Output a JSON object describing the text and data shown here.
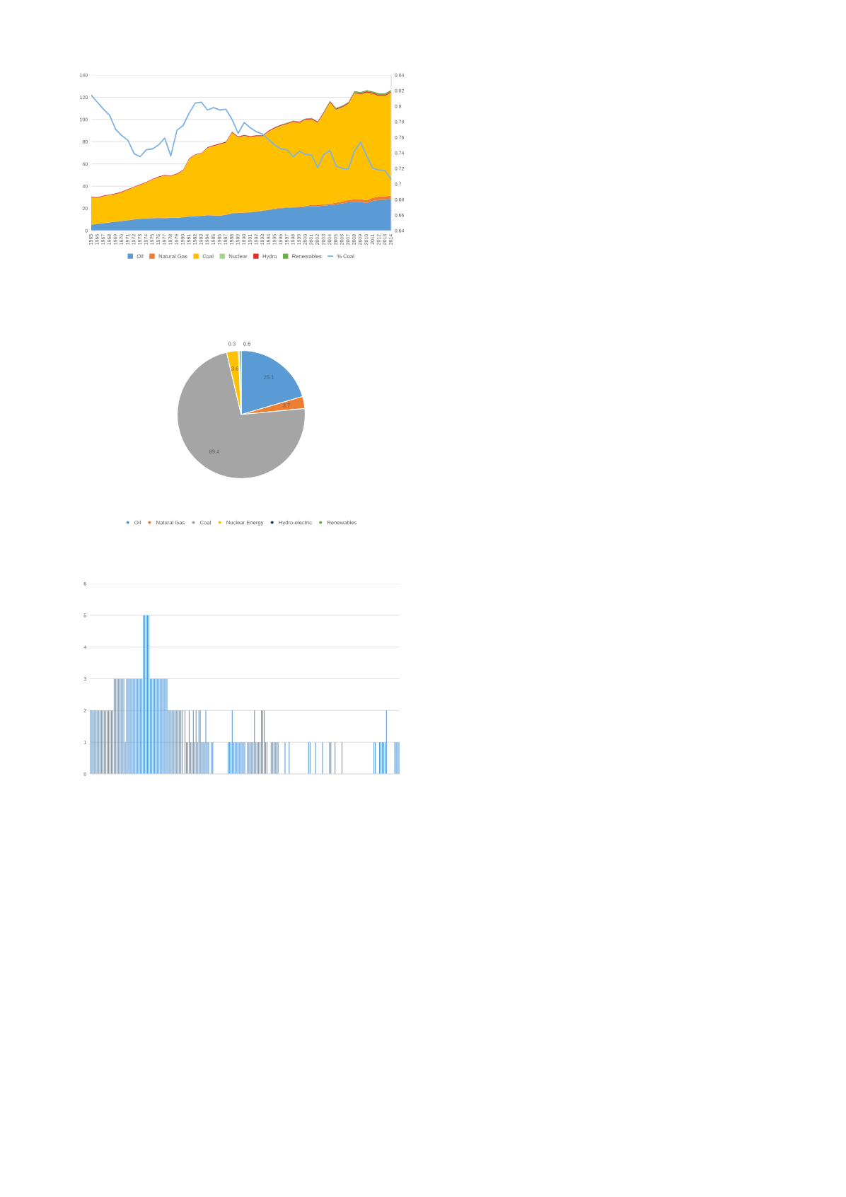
{
  "chart_data": [
    {
      "type": "area",
      "stacked": true,
      "grid": "y",
      "legend": "bottom",
      "categories": [
        "1965",
        "1966",
        "1967",
        "1968",
        "1969",
        "1970",
        "1971",
        "1972",
        "1973",
        "1974",
        "1975",
        "1976",
        "1977",
        "1978",
        "1979",
        "1980",
        "1981",
        "1982",
        "1983",
        "1984",
        "1985",
        "1986",
        "1987",
        "1988",
        "1989",
        "1990",
        "1991",
        "1992",
        "1993",
        "1994",
        "1995",
        "1996",
        "1997",
        "1998",
        "1999",
        "2000",
        "2001",
        "2002",
        "2003",
        "2004",
        "2005",
        "2006",
        "2007",
        "2008",
        "2009",
        "2010",
        "2011",
        "2012",
        "2013",
        "2014"
      ],
      "ylim": [
        0,
        140
      ],
      "yticks": [
        0,
        20,
        40,
        60,
        80,
        100,
        120,
        140
      ],
      "y2lim": [
        0.64,
        0.84
      ],
      "y2ticks": [
        0.64,
        0.66,
        0.68,
        0.7,
        0.72,
        0.74,
        0.76,
        0.78,
        0.8,
        0.82,
        0.84
      ],
      "series": [
        {
          "name": "Oil",
          "color": "#5b9bd5",
          "values": [
            5.3,
            6.0,
            6.6,
            7.3,
            8.0,
            8.6,
            9.3,
            10.0,
            10.6,
            11.0,
            11.1,
            11.3,
            11.2,
            11.5,
            11.4,
            12.0,
            12.5,
            13.0,
            13.2,
            13.8,
            13.5,
            13.3,
            14.2,
            15.6,
            15.9,
            16.1,
            16.4,
            17.0,
            17.8,
            18.6,
            19.4,
            20.0,
            20.5,
            20.8,
            21.0,
            21.4,
            21.8,
            22.0,
            22.5,
            23.0,
            23.5,
            24.5,
            25.5,
            26.0,
            25.8,
            24.8,
            26.8,
            27.6,
            27.8,
            28.2
          ]
        },
        {
          "name": "Natural Gas",
          "color": "#ed7d31",
          "values": [
            0.2,
            0.2,
            0.2,
            0.2,
            0.2,
            0.2,
            0.2,
            0.2,
            0.2,
            0.2,
            0.2,
            0.2,
            0.2,
            0.2,
            0.2,
            0.2,
            0.2,
            0.2,
            0.2,
            0.2,
            0.3,
            0.3,
            0.3,
            0.3,
            0.3,
            0.3,
            0.3,
            0.3,
            0.3,
            0.3,
            0.5,
            0.5,
            0.5,
            0.5,
            0.5,
            0.8,
            1.2,
            1.2,
            1.2,
            1.2,
            1.6,
            1.8,
            2.0,
            2.2,
            2.4,
            2.6,
            2.8,
            3.0,
            3.1,
            3.3
          ]
        },
        {
          "name": "Coal",
          "color": "#ffc000",
          "values": [
            24.3,
            23.2,
            24.1,
            24.4,
            24.8,
            25.7,
            27.3,
            28.7,
            30.3,
            32.0,
            34.6,
            36.6,
            38.1,
            37.4,
            39.2,
            41.8,
            51.6,
            54.9,
            55.8,
            60.4,
            62.1,
            63.9,
            64.5,
            72.1,
            67.6,
            68.7,
            67.3,
            67.6,
            66.8,
            70.2,
            72.1,
            73.7,
            74.9,
            76.5,
            75.5,
            77.4,
            76.9,
            73.7,
            81.8,
            90.9,
            83.6,
            84.5,
            86.5,
            95.3,
            94.3,
            96.8,
            93.5,
            90.4,
            90.1,
            92.7
          ]
        },
        {
          "name": "Nuclear",
          "color": "#a9d18e",
          "values": [
            0,
            0,
            0,
            0,
            0,
            0,
            0,
            0,
            0,
            0,
            0,
            0,
            0,
            0,
            0,
            0,
            0.1,
            0.1,
            0.1,
            0.1,
            0.1,
            0.1,
            0.1,
            0.1,
            0.1,
            0.1,
            0.1,
            0.1,
            0.1,
            0.1,
            0.1,
            0.1,
            0.1,
            0.1,
            0.1,
            0.1,
            0.1,
            0.1,
            0.1,
            0.1,
            0.1,
            0.1,
            0.1,
            0.1,
            0.1,
            0.1,
            0.1,
            0.1,
            0.1,
            0.1
          ]
        },
        {
          "name": "Hydro",
          "color": "#e0302a",
          "values": [
            0.6,
            0.6,
            0.6,
            0.6,
            0.6,
            0.6,
            0.6,
            0.6,
            0.6,
            0.6,
            0.6,
            0.6,
            0.6,
            0.6,
            0.6,
            0.6,
            0.6,
            0.6,
            0.6,
            0.6,
            0.8,
            0.8,
            0.8,
            0.8,
            0.8,
            0.8,
            0.8,
            0.8,
            0.8,
            0.8,
            0.8,
            0.8,
            0.8,
            0.8,
            0.8,
            0.8,
            1.0,
            1.0,
            1.0,
            1.0,
            1.0,
            1.0,
            1.0,
            1.0,
            1.0,
            1.0,
            1.0,
            1.0,
            1.0,
            1.0
          ]
        },
        {
          "name": "Renewables",
          "color": "#70ad47",
          "values": [
            0,
            0,
            0,
            0,
            0,
            0,
            0,
            0,
            0,
            0,
            0,
            0,
            0,
            0,
            0,
            0,
            0,
            0,
            0,
            0,
            0,
            0.1,
            0.1,
            0.1,
            0.1,
            0.1,
            0.1,
            0.1,
            0.1,
            0.1,
            0.3,
            0.3,
            0.3,
            0.3,
            0.3,
            0.3,
            0.3,
            0.3,
            0.6,
            0.6,
            0.6,
            0.6,
            0.6,
            1.0,
            1.0,
            1.0,
            1.0,
            1.4,
            1.4,
            1.4
          ]
        },
        {
          "name": "% Coal",
          "type": "line",
          "axis": "y2",
          "color": "#7fb2e0",
          "values": [
            0.814,
            0.805,
            0.796,
            0.788,
            0.77,
            0.762,
            0.756,
            0.739,
            0.735,
            0.744,
            0.745,
            0.75,
            0.759,
            0.736,
            0.769,
            0.775,
            0.791,
            0.804,
            0.805,
            0.795,
            0.798,
            0.795,
            0.796,
            0.783,
            0.765,
            0.779,
            0.772,
            0.767,
            0.764,
            0.757,
            0.75,
            0.745,
            0.744,
            0.735,
            0.742,
            0.738,
            0.737,
            0.721,
            0.738,
            0.743,
            0.723,
            0.72,
            0.719,
            0.742,
            0.754,
            0.736,
            0.72,
            0.718,
            0.717,
            0.706
          ]
        }
      ]
    },
    {
      "type": "pie",
      "data_labels": true,
      "legend": "bottom",
      "categories": [
        "Oil",
        "Natural Gas",
        "Coal",
        "Nuclear Energy",
        "Hydro-electric",
        "Renewables"
      ],
      "values": [
        25.1,
        3.7,
        89.4,
        3.6,
        0.3,
        0.6
      ],
      "colors": [
        "#5b9bd5",
        "#ed7d31",
        "#a5a5a5",
        "#ffc000",
        "#264478",
        "#70ad47"
      ]
    },
    {
      "type": "bar",
      "grid": "y",
      "color": "#5b9bd5",
      "ylim": [
        0,
        6
      ],
      "yticks": [
        0,
        1,
        2,
        3,
        4,
        5,
        6
      ],
      "categories": [
        null,
        null,
        null,
        null,
        null,
        null,
        null,
        null,
        null,
        null,
        null,
        null,
        null,
        null,
        null,
        null,
        null,
        null,
        null,
        null,
        null,
        null,
        null,
        null,
        null,
        null,
        null,
        null,
        null,
        null,
        null,
        null,
        null,
        null,
        null,
        null,
        null,
        null,
        null,
        null,
        null,
        null,
        null,
        null,
        null,
        null,
        null,
        null,
        null,
        null,
        null,
        null,
        null,
        null,
        null,
        null,
        null,
        null,
        null,
        null,
        null,
        null,
        null,
        null,
        null,
        null,
        null,
        null,
        null,
        null,
        null,
        null,
        null,
        null,
        null,
        null,
        null,
        null,
        null,
        null,
        null,
        null,
        null,
        null,
        null,
        null,
        null,
        null,
        null,
        null,
        null,
        null,
        null,
        null,
        null,
        null,
        null,
        null,
        null,
        null,
        null,
        null,
        null,
        null,
        null,
        null,
        null,
        null,
        null,
        null,
        null,
        null,
        null,
        null,
        null,
        null,
        null,
        null,
        null,
        null,
        null,
        null,
        null,
        null,
        null,
        null,
        null,
        null,
        null,
        null,
        null,
        null,
        null,
        null,
        null,
        null,
        null,
        null,
        null,
        null,
        null,
        null,
        null,
        null,
        null,
        null,
        null,
        null,
        null,
        null,
        null,
        null,
        null,
        null,
        null,
        null,
        null,
        null,
        null,
        null,
        null,
        null,
        null,
        null,
        null,
        null,
        null,
        null,
        null,
        null,
        null,
        null,
        null,
        null,
        null,
        null,
        null,
        null,
        null,
        null,
        null,
        null,
        null,
        null,
        null,
        null,
        null,
        null,
        null,
        null,
        null,
        null,
        null,
        null,
        null,
        null,
        null,
        null,
        null,
        null,
        null,
        null,
        null,
        null,
        null,
        null,
        null,
        null,
        null,
        null,
        null,
        null,
        null,
        null,
        null,
        null,
        null,
        null,
        null,
        null,
        null,
        null,
        null
      ],
      "values": [
        2,
        2,
        2,
        2,
        2,
        2,
        2,
        2,
        2,
        2,
        2,
        2,
        2,
        2,
        2,
        2,
        2,
        3,
        3,
        3,
        3,
        3,
        3,
        3,
        3,
        1,
        3,
        3,
        3,
        3,
        3,
        3,
        3,
        3,
        3,
        3,
        3,
        3,
        5,
        5,
        5,
        5,
        5,
        3,
        3,
        3,
        3,
        3,
        3,
        3,
        3,
        3,
        3,
        3,
        3,
        3,
        2,
        2,
        2,
        2,
        2,
        2,
        2,
        2,
        2,
        2,
        2,
        0,
        2,
        1,
        1,
        2,
        1,
        1,
        2,
        1,
        2,
        1,
        2,
        2,
        1,
        1,
        1,
        2,
        1,
        1,
        0,
        1,
        1,
        0,
        0,
        0,
        0,
        0,
        0,
        0,
        0,
        0,
        0,
        1,
        1,
        1,
        2,
        1,
        1,
        1,
        1,
        1,
        1,
        1,
        1,
        1,
        0,
        1,
        1,
        1,
        1,
        1,
        2,
        1,
        1,
        1,
        1,
        2,
        2,
        2,
        1,
        1,
        0,
        0,
        1,
        1,
        1,
        1,
        1,
        1,
        0,
        0,
        0,
        0,
        1,
        0,
        0,
        1,
        0,
        0,
        0,
        0,
        0,
        0,
        0,
        0,
        0,
        0,
        0,
        0,
        0,
        1,
        1,
        0,
        0,
        0,
        1,
        0,
        0,
        0,
        0,
        1,
        0,
        0,
        0,
        0,
        1,
        1,
        0,
        0,
        1,
        0,
        0,
        0,
        0,
        1,
        0,
        0,
        0,
        0,
        0,
        0,
        0,
        0,
        0,
        0,
        0,
        0,
        0,
        0,
        0,
        0,
        0,
        0,
        0,
        0,
        0,
        0,
        1,
        1,
        0,
        0,
        1,
        1,
        1,
        1,
        1,
        2,
        0,
        0,
        0,
        0,
        0,
        1,
        1,
        1,
        1
      ]
    }
  ]
}
